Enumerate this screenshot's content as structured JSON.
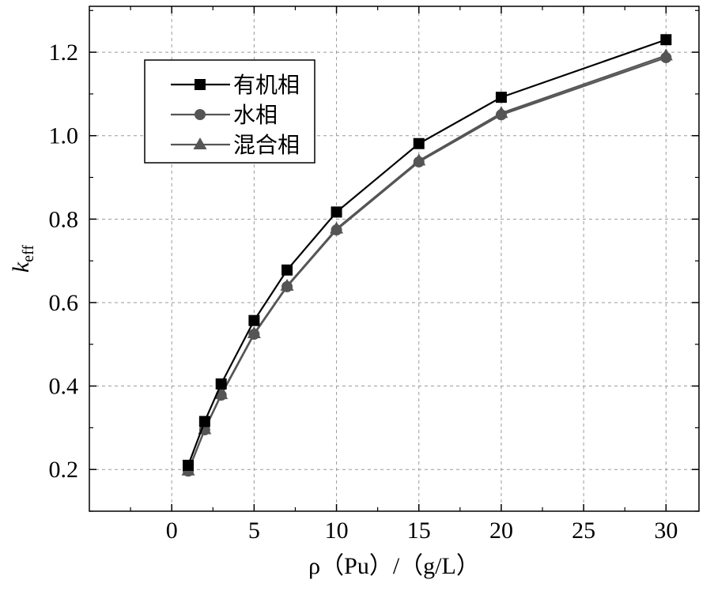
{
  "chart_data": {
    "type": "line",
    "xlabel": "ρ（Pu）/（g/L）",
    "ylabel_main": "k",
    "ylabel_sub": "eff",
    "xlim": [
      -5,
      32
    ],
    "ylim": [
      0.1,
      1.31
    ],
    "x_ticks": [
      0,
      5,
      10,
      15,
      20,
      25,
      30
    ],
    "x_tick_labels": [
      "0",
      "5",
      "10",
      "15",
      "20",
      "25",
      "30"
    ],
    "y_ticks": [
      0.2,
      0.4,
      0.6,
      0.8,
      1.0,
      1.2
    ],
    "y_tick_labels": [
      "0.2",
      "0.4",
      "0.6",
      "0.8",
      "1.0",
      "1.2"
    ],
    "grid": true,
    "legend_position": "top-left",
    "series": [
      {
        "name": "有机相",
        "marker": "square",
        "color": "#000000",
        "x": [
          1,
          2,
          3,
          5,
          7,
          10,
          15,
          20,
          30
        ],
        "y": [
          0.21,
          0.315,
          0.405,
          0.557,
          0.678,
          0.817,
          0.981,
          1.092,
          1.23
        ]
      },
      {
        "name": "水相",
        "marker": "circle",
        "color": "#555555",
        "x": [
          1,
          2,
          3,
          5,
          7,
          10,
          15,
          20,
          30
        ],
        "y": [
          0.196,
          0.295,
          0.378,
          0.524,
          0.638,
          0.774,
          0.937,
          1.05,
          1.187
        ]
      },
      {
        "name": "混合相",
        "marker": "triangle",
        "color": "#555555",
        "x": [
          1,
          2,
          3,
          5,
          7,
          10,
          15,
          20,
          30
        ],
        "y": [
          0.197,
          0.296,
          0.38,
          0.526,
          0.64,
          0.777,
          0.94,
          1.054,
          1.192
        ]
      }
    ]
  }
}
